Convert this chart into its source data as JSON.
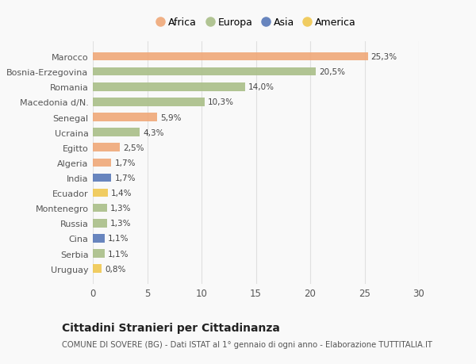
{
  "countries": [
    "Marocco",
    "Bosnia-Erzegovina",
    "Romania",
    "Macedonia d/N.",
    "Senegal",
    "Ucraina",
    "Egitto",
    "Algeria",
    "India",
    "Ecuador",
    "Montenegro",
    "Russia",
    "Cina",
    "Serbia",
    "Uruguay"
  ],
  "values": [
    25.3,
    20.5,
    14.0,
    10.3,
    5.9,
    4.3,
    2.5,
    1.7,
    1.7,
    1.4,
    1.3,
    1.3,
    1.1,
    1.1,
    0.8
  ],
  "labels": [
    "25,3%",
    "20,5%",
    "14,0%",
    "10,3%",
    "5,9%",
    "4,3%",
    "2,5%",
    "1,7%",
    "1,7%",
    "1,4%",
    "1,3%",
    "1,3%",
    "1,1%",
    "1,1%",
    "0,8%"
  ],
  "continents": [
    "Africa",
    "Europa",
    "Europa",
    "Europa",
    "Africa",
    "Europa",
    "Africa",
    "Africa",
    "Asia",
    "America",
    "Europa",
    "Europa",
    "Asia",
    "Europa",
    "America"
  ],
  "continent_colors": {
    "Africa": "#F0A878",
    "Europa": "#AABF88",
    "Asia": "#5878B8",
    "America": "#F0C850"
  },
  "legend_order": [
    "Africa",
    "Europa",
    "Asia",
    "America"
  ],
  "title": "Cittadini Stranieri per Cittadinanza",
  "subtitle": "COMUNE DI SOVERE (BG) - Dati ISTAT al 1° gennaio di ogni anno - Elaborazione TUTTITALIA.IT",
  "xlim": [
    0,
    30
  ],
  "xticks": [
    0,
    5,
    10,
    15,
    20,
    25,
    30
  ],
  "background_color": "#f9f9f9",
  "grid_color": "#e0e0e0"
}
